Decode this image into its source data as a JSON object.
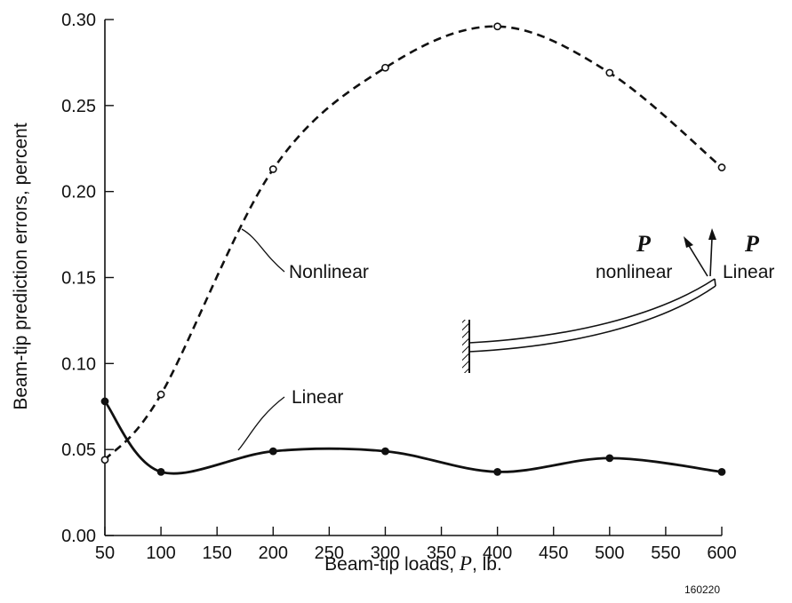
{
  "chart_data": {
    "type": "line",
    "title": "",
    "xlabel_prefix": "Beam-tip loads, ",
    "xlabel_var": "P",
    "xlabel_suffix": ", lb.",
    "ylabel": "Beam-tip prediction errors, percent",
    "xlim": [
      50,
      600
    ],
    "ylim": [
      0,
      0.3
    ],
    "x_ticks": [
      "50",
      "100",
      "150",
      "200",
      "250",
      "300",
      "350",
      "400",
      "450",
      "500",
      "550",
      "600"
    ],
    "y_ticks": [
      "0.00",
      "0.05",
      "0.10",
      "0.15",
      "0.20",
      "0.25",
      "0.30"
    ],
    "x": [
      50,
      100,
      200,
      300,
      400,
      500,
      600
    ],
    "series": [
      {
        "name": "Nonlinear",
        "style": "dashed",
        "marker": "open-circle",
        "values": [
          0.044,
          0.082,
          0.213,
          0.272,
          0.296,
          0.269,
          0.214
        ]
      },
      {
        "name": "Linear",
        "style": "solid",
        "marker": "filled-circle",
        "values": [
          0.078,
          0.037,
          0.049,
          0.049,
          0.037,
          0.045,
          0.037
        ]
      }
    ],
    "grid": false
  },
  "annotations": {
    "nonlinear_label": "Nonlinear",
    "linear_label": "Linear",
    "inset_p_left": "P",
    "inset_p_right": "P",
    "inset_nonlinear": "nonlinear",
    "inset_linear": "Linear",
    "figure_id": "160220"
  }
}
